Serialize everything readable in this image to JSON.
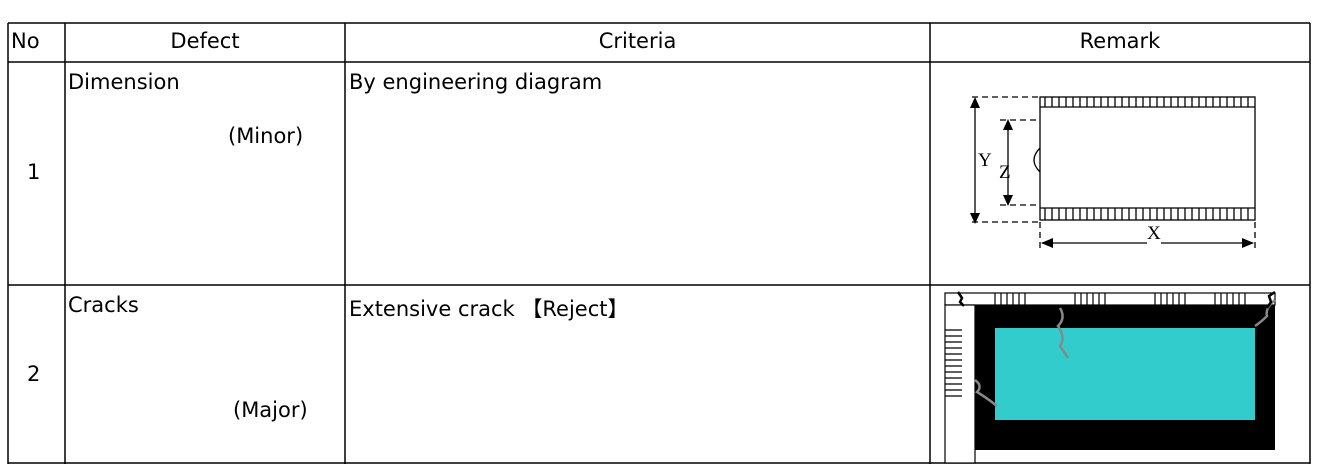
{
  "table": {
    "header": [
      "No",
      "Defect",
      "Criteria",
      "Remark"
    ],
    "rows": [
      {
        "no": "1",
        "defect": "Dimension",
        "severity": "(Minor)",
        "criteria": "By engineering diagram",
        "labels": [
          "Y",
          "Z",
          "X"
        ]
      },
      {
        "no": "2",
        "defect": "Cracks",
        "severity": "(Major)",
        "criteria": "Extensive crack 【Reject】"
      }
    ]
  }
}
